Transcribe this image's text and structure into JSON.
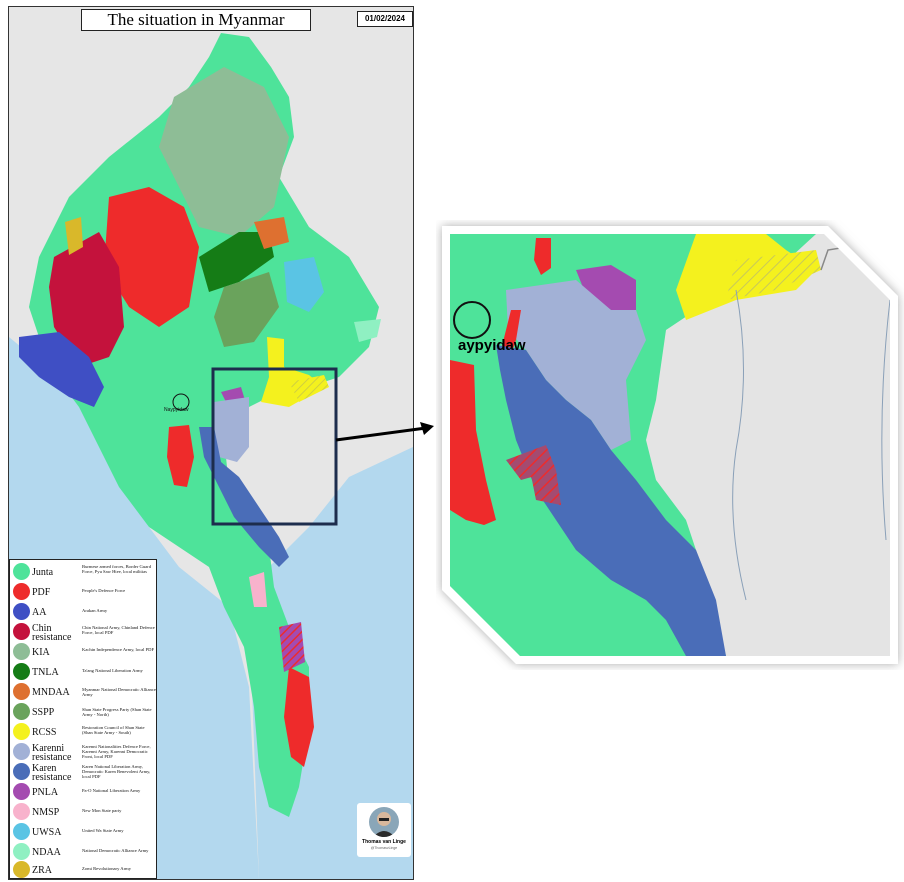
{
  "map": {
    "title": "The situation in Myanmar",
    "date": "01/02/2024",
    "capital_label": "Naypyidaw",
    "colors": {
      "sea": "#b3d8ee",
      "neighbor": "#e6e6e6",
      "border": "#555555"
    }
  },
  "legend": {
    "items": [
      {
        "name": "Junta",
        "description": "Burmese armed forces, Border Guard Force, Pyu Saw Htee, local militias",
        "color": "#4ee39a"
      },
      {
        "name": "PDF",
        "description": "People's Defence Force",
        "color": "#ee2b2b"
      },
      {
        "name": "AA",
        "description": "Arakan Army",
        "color": "#3f4fc4"
      },
      {
        "name": "Chin resistance",
        "description": "Chin National Army, Chinland Defence Force, local PDF",
        "color": "#c4123c"
      },
      {
        "name": "KIA",
        "description": "Kachin Independence Army, local PDF",
        "color": "#8ebd96"
      },
      {
        "name": "TNLA",
        "description": "Ta'ang National Liberation Army",
        "color": "#157c16"
      },
      {
        "name": "MNDAA",
        "description": "Myanmar National Democratic Alliance Army",
        "color": "#de7030"
      },
      {
        "name": "SSPP",
        "description": "Shan State Progress Party (Shan State Army - North)",
        "color": "#6aa35c"
      },
      {
        "name": "RCSS",
        "description": "Restoration Council of Shan State (Shan State Army - South)",
        "color": "#f4f11e"
      },
      {
        "name": "Karenni resistance",
        "description": "Karenni Nationalities Defence Force, Karenni Army, Karenni Democratic Front, local PDF",
        "color": "#a2b1d6"
      },
      {
        "name": "Karen resistance",
        "description": "Karen National Liberation Army, Democratic Karen Benevolent Army, local PDF",
        "color": "#4a6db8"
      },
      {
        "name": "PNLA",
        "description": "Pa-O National Liberation Army",
        "color": "#a44bb0"
      },
      {
        "name": "NMSP",
        "description": "New Mon State party",
        "color": "#f8b2cc"
      },
      {
        "name": "UWSA",
        "description": "United Wa State Army",
        "color": "#5ac4e4"
      },
      {
        "name": "NDAA",
        "description": "National Democratic Alliance Army",
        "color": "#8ff0c2"
      },
      {
        "name": "ZRA",
        "description": "Zomi Revolutionary Army",
        "color": "#d9b82a"
      }
    ]
  },
  "attribution": {
    "author": "Thomas van Linge",
    "handle": "@ThomasvLinge"
  },
  "zoom": {
    "capital_label": "aypyidaw"
  }
}
